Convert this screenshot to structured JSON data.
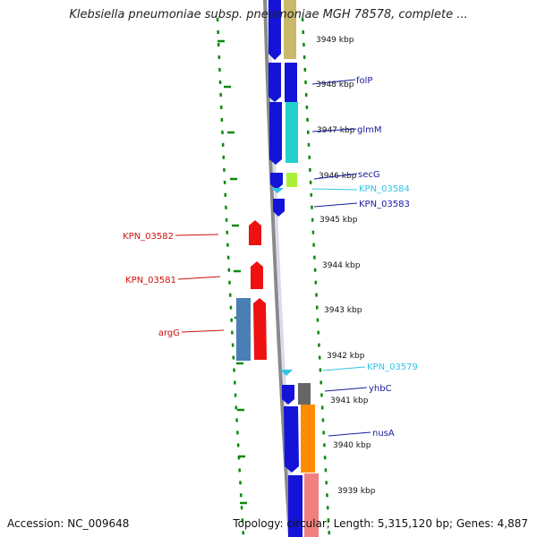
{
  "title": "Klebsiella pneumoniae subsp. pneumoniae MGH 78578, complete ...",
  "footer": {
    "accession": "Accession: NC_009648",
    "stats": "Topology: circular; Length: 5,315,120 bp; Genes: 4,887"
  },
  "colors": {
    "blue": "#1414d8",
    "red": "#ee1111",
    "cyan": "#33c3e6",
    "green_dot": "#0a8a0a",
    "backbone": "#888888"
  },
  "ticks": [
    "3949 kbp",
    "3948 kbp",
    "3947 kbp",
    "3946 kbp",
    "3945 kbp",
    "3944 kbp",
    "3943 kbp",
    "3942 kbp",
    "3941 kbp",
    "3940 kbp",
    "3939 kbp"
  ],
  "gene_labels": [
    {
      "text": "folP",
      "color": "#1a1aa0"
    },
    {
      "text": "glmM",
      "color": "#1a1aa0"
    },
    {
      "text": "secG",
      "color": "#1a1aa0"
    },
    {
      "text": "KPN_03584",
      "color": "#33c3e6"
    },
    {
      "text": "KPN_03583",
      "color": "#1a1aa0"
    },
    {
      "text": "KPN_03582",
      "color": "#cc1111"
    },
    {
      "text": "KPN_03581",
      "color": "#cc1111"
    },
    {
      "text": "argG",
      "color": "#cc1111"
    },
    {
      "text": "KPN_03579",
      "color": "#33c3e6"
    },
    {
      "text": "yhbC",
      "color": "#1a1aa0"
    },
    {
      "text": "nusA",
      "color": "#1a1aa0"
    }
  ]
}
